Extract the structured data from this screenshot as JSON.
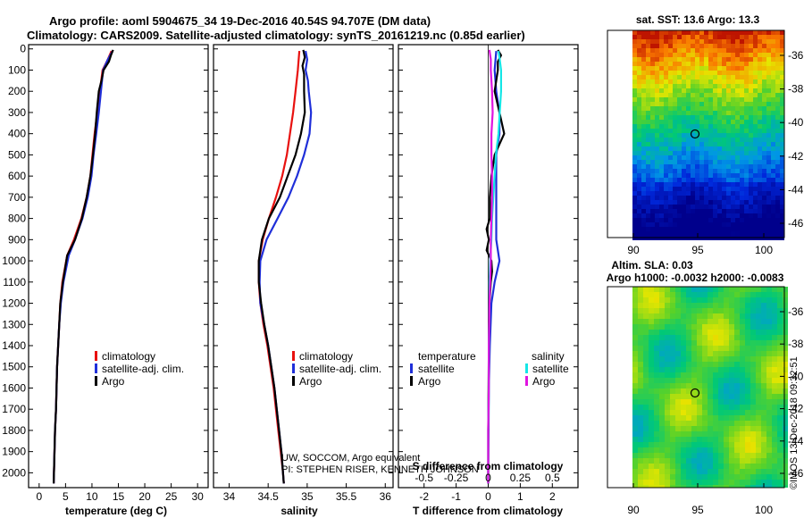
{
  "header": {
    "line1": "Argo profile: aoml 5904675_34 19-Dec-2016 40.54S 94.707E (DM data)",
    "line2": "Climatology: CARS2009. Satellite-adjusted climatology: synTS_20161219.nc (0.85d earlier)"
  },
  "maps": {
    "sst_title": "sat. SST: 13.6 Argo: 13.3",
    "sla_title1": "Altim. SLA: 0.03",
    "sla_title2": "Argo h1000: -0.0032 h2000: -0.0083",
    "credit": "©IMOS 13-Dec-2018 09:32:51"
  },
  "chart_data": [
    {
      "type": "line",
      "title": "",
      "xlabel": "temperature (deg C)",
      "ylabel": "",
      "xlim": [
        -2,
        32
      ],
      "ylim": [
        2070,
        -20
      ],
      "x_ticks": [
        "0",
        "5",
        "10",
        "15",
        "20",
        "25",
        "30"
      ],
      "y_ticks": [
        "0",
        "100",
        "200",
        "300",
        "400",
        "500",
        "600",
        "700",
        "800",
        "900",
        "1000",
        "1100",
        "1200",
        "1300",
        "1400",
        "1500",
        "1600",
        "1700",
        "1800",
        "1900",
        "2000"
      ],
      "legend": [
        "climatology",
        "satellite-adj. clim.",
        "Argo"
      ],
      "series": [
        {
          "name": "climatology",
          "color": "#e8110f",
          "depth": [
            10,
            50,
            100,
            200,
            300,
            400,
            500,
            600,
            700,
            800,
            900,
            975,
            1100,
            1200,
            1300,
            1400,
            1500,
            1600,
            1700,
            1800,
            1900,
            2000,
            2050
          ],
          "values": [
            13.7,
            13.0,
            12.0,
            11.5,
            11.0,
            10.5,
            10.1,
            9.7,
            9.0,
            8.0,
            6.6,
            5.3,
            4.4,
            4.0,
            3.8,
            3.6,
            3.4,
            3.3,
            3.2,
            3.0,
            2.9,
            2.8,
            2.75
          ]
        },
        {
          "name": "satellite-adj. clim.",
          "color": "#1f2fd9",
          "depth": [
            10,
            50,
            100,
            200,
            300,
            400,
            500,
            600,
            700,
            800,
            900,
            975,
            1100,
            1200,
            1300,
            1400,
            1500,
            1600,
            1700,
            1800,
            1900,
            2000,
            2050
          ],
          "values": [
            13.9,
            13.0,
            12.1,
            11.7,
            11.3,
            10.8,
            10.3,
            9.9,
            9.2,
            8.2,
            6.8,
            5.6,
            4.6,
            4.1,
            3.8,
            3.6,
            3.4,
            3.3,
            3.2,
            3.0,
            2.9,
            2.8,
            2.75
          ]
        },
        {
          "name": "Argo",
          "color": "#000000",
          "depth": [
            5,
            30,
            60,
            100,
            150,
            200,
            300,
            400,
            500,
            600,
            700,
            800,
            900,
            975,
            1100,
            1200,
            1300,
            1400,
            1500,
            1600,
            1700,
            1800,
            1900,
            2000,
            2050
          ],
          "values": [
            14.0,
            13.6,
            13.2,
            12.2,
            11.8,
            11.3,
            10.9,
            10.6,
            10.2,
            9.7,
            9.0,
            8.1,
            6.8,
            5.3,
            4.5,
            4.0,
            3.8,
            3.6,
            3.4,
            3.3,
            3.2,
            3.0,
            2.9,
            2.8,
            2.75
          ]
        }
      ]
    },
    {
      "type": "line",
      "title": "",
      "xlabel": "salinity",
      "ylabel": "",
      "xlim": [
        33.8,
        36.1
      ],
      "ylim": [
        2070,
        -20
      ],
      "x_ticks": [
        "34",
        "34.5",
        "35",
        "35.5",
        "36"
      ],
      "y_ticks": [],
      "legend": [
        "climatology",
        "satellite-adj. clim.",
        "Argo"
      ],
      "series": [
        {
          "name": "climatology",
          "color": "#e8110f",
          "depth": [
            10,
            100,
            200,
            300,
            400,
            500,
            600,
            700,
            800,
            900,
            1000,
            1100,
            1200,
            1300,
            1400,
            1500,
            1600,
            1700,
            1800,
            1900,
            2000,
            2050
          ],
          "values": [
            34.9,
            34.88,
            34.85,
            34.82,
            34.78,
            34.74,
            34.68,
            34.6,
            34.51,
            34.43,
            34.38,
            34.38,
            34.4,
            34.44,
            34.49,
            34.53,
            34.57,
            34.6,
            34.63,
            34.66,
            34.69,
            34.7
          ]
        },
        {
          "name": "satellite-adj. clim.",
          "color": "#1f2fd9",
          "depth": [
            10,
            50,
            100,
            150,
            200,
            300,
            400,
            500,
            600,
            700,
            800,
            900,
            1000,
            1100,
            1200,
            1300,
            1400,
            1500,
            1600,
            1700,
            1800,
            1900,
            2000,
            2050
          ],
          "values": [
            34.98,
            35.0,
            34.98,
            35.01,
            35.02,
            35.05,
            35.03,
            34.96,
            34.87,
            34.76,
            34.62,
            34.48,
            34.4,
            34.39,
            34.4,
            34.45,
            34.5,
            34.54,
            34.58,
            34.61,
            34.64,
            34.67,
            34.69,
            34.7
          ]
        },
        {
          "name": "Argo",
          "color": "#000000",
          "depth": [
            5,
            40,
            80,
            120,
            200,
            300,
            400,
            500,
            600,
            700,
            800,
            900,
            1000,
            1100,
            1200,
            1300,
            1400,
            1500,
            1600,
            1700,
            1800,
            1900,
            2000,
            2050
          ],
          "values": [
            34.95,
            34.97,
            34.94,
            34.96,
            34.96,
            34.97,
            34.92,
            34.85,
            34.75,
            34.65,
            34.51,
            34.42,
            34.38,
            34.38,
            34.41,
            34.45,
            34.5,
            34.54,
            34.58,
            34.61,
            34.64,
            34.67,
            34.69,
            34.7
          ]
        }
      ]
    },
    {
      "type": "line",
      "title": "",
      "xlabel": "T difference from climatology",
      "ylabel": "",
      "xlim": [
        -2.8,
        2.8
      ],
      "ylim": [
        2070,
        -20
      ],
      "x_ticks": [
        "-2",
        "-1",
        "0",
        "1",
        "2"
      ],
      "y_ticks": [],
      "secondary_axis_label": "S difference from climatology",
      "secondary_x_ticks": [
        "-0.5",
        "-0.25",
        "0",
        "0.25",
        "0.5"
      ],
      "legend_groups": [
        {
          "title": "temperature",
          "items": [
            "satellite",
            "Argo"
          ]
        },
        {
          "title": "salinity",
          "items": [
            "satellite",
            "Argo"
          ]
        }
      ],
      "series": [
        {
          "name": "temperature satellite",
          "color": "#1f2fd9",
          "depth": [
            10,
            100,
            200,
            300,
            400,
            500,
            600,
            700,
            800,
            900,
            1000,
            1100,
            1200,
            1400,
            1600,
            1800,
            2000,
            2050
          ],
          "values": [
            0.25,
            0.2,
            0.25,
            0.35,
            0.35,
            0.25,
            0.25,
            0.25,
            0.25,
            0.25,
            0.35,
            0.2,
            0.1,
            0.05,
            0.02,
            0.01,
            0.0,
            0.0
          ]
        },
        {
          "name": "temperature Argo",
          "color": "#000000",
          "depth": [
            5,
            30,
            60,
            100,
            200,
            300,
            400,
            500,
            600,
            700,
            800,
            850,
            900,
            950,
            1000,
            1050,
            1100,
            1200,
            1400,
            1600,
            1800,
            2000,
            2050
          ],
          "values": [
            0.3,
            0.4,
            0.3,
            0.3,
            0.2,
            0.35,
            0.5,
            0.2,
            0.1,
            0.05,
            0.05,
            -0.05,
            0.02,
            -0.05,
            0.1,
            0.12,
            0.08,
            0.04,
            0.02,
            0.01,
            0.0,
            0.0,
            0.0
          ]
        },
        {
          "name": "salinity satellite",
          "color": "#15e6e6",
          "depth": [
            10,
            50,
            100,
            200,
            300,
            400,
            500,
            600,
            700,
            800,
            900,
            1000,
            1100,
            1200,
            1400,
            1600,
            1800,
            2000,
            2050
          ],
          "values": [
            0.08,
            0.09,
            0.1,
            0.1,
            0.09,
            0.08,
            0.06,
            0.05,
            0.04,
            0.03,
            0.025,
            0.015,
            0.01,
            0.01,
            0.005,
            0.005,
            0.0,
            0.0,
            0.0
          ]
        },
        {
          "name": "salinity Argo",
          "color": "#e015e0",
          "depth": [
            5,
            50,
            100,
            200,
            300,
            400,
            500,
            600,
            700,
            800,
            900,
            1000,
            1100,
            1200,
            1400,
            1600,
            1800,
            2000,
            2050
          ],
          "values": [
            0.01,
            0.02,
            0.02,
            0.03,
            0.035,
            0.025,
            0.025,
            0.03,
            0.03,
            0.025,
            0.02,
            0.02,
            0.015,
            0.01,
            0.005,
            0.005,
            0.0,
            0.0,
            0.0
          ]
        }
      ]
    }
  ],
  "map_axes": {
    "lat_ticks": [
      "-36",
      "-38",
      "-40",
      "-42",
      "-44",
      "-46"
    ],
    "lon_ticks": [
      "90",
      "95",
      "100"
    ]
  },
  "annotations": {
    "float_credit1": "UW, SOCCOM, Argo equivalent",
    "float_credit2": "PI: STEPHEN RISER, KENNETH JOHNSON"
  }
}
